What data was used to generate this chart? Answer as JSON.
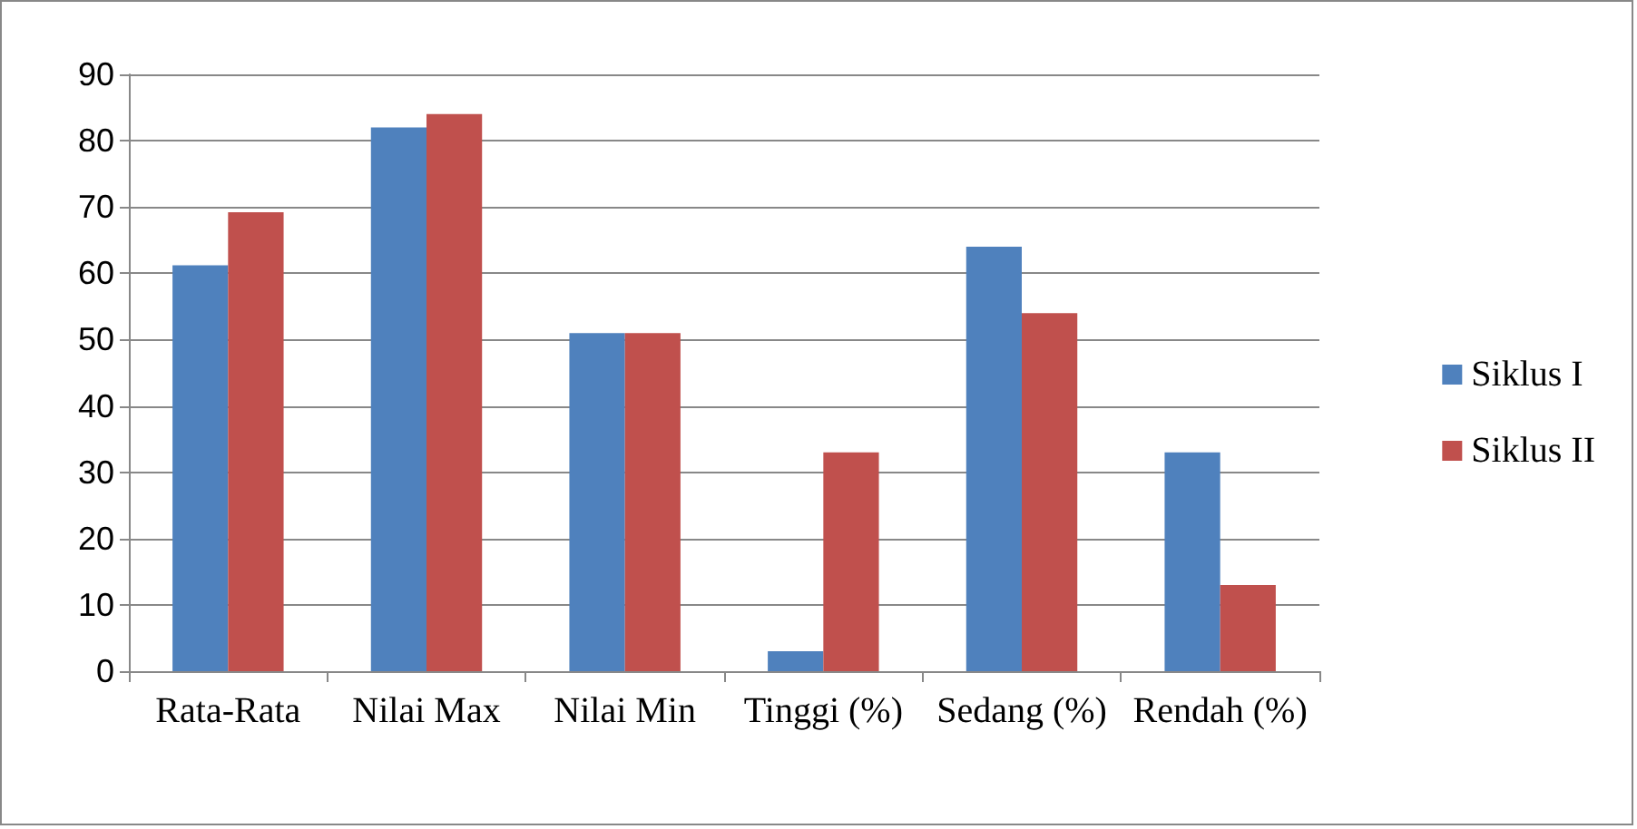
{
  "chart_data": {
    "type": "bar",
    "categories": [
      "Rata-Rata",
      "Nilai Max",
      "Nilai Min",
      "Tinggi (%)",
      "Sedang (%)",
      "Rendah (%)"
    ],
    "series": [
      {
        "name": "Siklus I",
        "color": "#4f81bd",
        "values": [
          61.2,
          82,
          51,
          3,
          64,
          33
        ]
      },
      {
        "name": "Siklus II",
        "color": "#c0504d",
        "values": [
          69.2,
          84,
          51,
          33,
          54,
          13
        ]
      }
    ],
    "ylim": [
      0,
      90
    ],
    "yticks": [
      0,
      10,
      20,
      30,
      40,
      50,
      60,
      70,
      80,
      90
    ],
    "grid": "y",
    "legend": "right"
  }
}
